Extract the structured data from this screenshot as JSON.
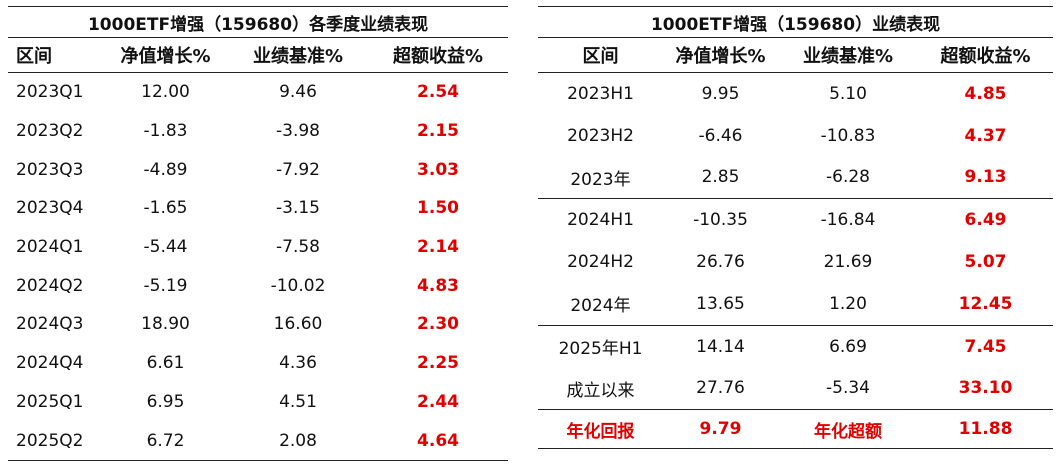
{
  "left": {
    "title": "1000ETF增强（159680）各季度业绩表现",
    "headers": [
      "区间",
      "净值增长%",
      "业绩基准%",
      "超额收益%"
    ],
    "rows": [
      [
        "2023Q1",
        "12.00",
        "9.46",
        "2.54"
      ],
      [
        "2023Q2",
        "-1.83",
        "-3.98",
        "2.15"
      ],
      [
        "2023Q3",
        "-4.89",
        "-7.92",
        "3.03"
      ],
      [
        "2023Q4",
        "-1.65",
        "-3.15",
        "1.50"
      ],
      [
        "2024Q1",
        "-5.44",
        "-7.58",
        "2.14"
      ],
      [
        "2024Q2",
        "-5.19",
        "-10.02",
        "4.83"
      ],
      [
        "2024Q3",
        "18.90",
        "16.60",
        "2.30"
      ],
      [
        "2024Q4",
        "6.61",
        "4.36",
        "2.25"
      ],
      [
        "2025Q1",
        "6.95",
        "4.51",
        "2.44"
      ],
      [
        "2025Q2",
        "6.72",
        "2.08",
        "4.64"
      ]
    ]
  },
  "right": {
    "title": "1000ETF增强（159680）业绩表现",
    "headers": [
      "区间",
      "净值增长%",
      "业绩基准%",
      "超额收益%"
    ],
    "rows": [
      [
        "2023H1",
        "9.95",
        "5.10",
        "4.85"
      ],
      [
        "2023H2",
        "-6.46",
        "-10.83",
        "4.37"
      ],
      [
        "2023年",
        "2.85",
        "-6.28",
        "9.13"
      ],
      [
        "2024H1",
        "-10.35",
        "-16.84",
        "6.49"
      ],
      [
        "2024H2",
        "26.76",
        "21.69",
        "5.07"
      ],
      [
        "2024年",
        "13.65",
        "1.20",
        "12.45"
      ],
      [
        "2025年H1",
        "14.14",
        "6.69",
        "7.45"
      ],
      [
        "成立以来",
        "27.76",
        "-5.34",
        "33.10"
      ]
    ],
    "summary": [
      "年化回报",
      "9.79",
      "年化超额",
      "11.88"
    ]
  },
  "colors": {
    "excess": "#e00000",
    "rule": "#222222"
  }
}
